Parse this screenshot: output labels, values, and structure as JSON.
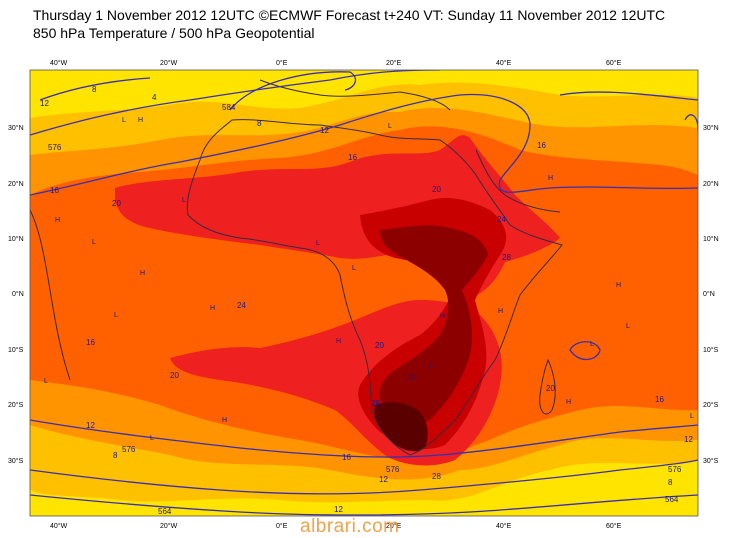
{
  "header": {
    "line1": "Thursday 1 November 2012 12UTC ©ECMWF Forecast t+240 VT: Sunday 11 November 2012 12UTC",
    "line2": "850 hPa Temperature / 500 hPa Geopotential"
  },
  "colors": {
    "yellow": "#ffe400",
    "gold": "#ffc000",
    "orange": "#ff9400",
    "dark_orange": "#ff6000",
    "red": "#ee2020",
    "crimson": "#c80000",
    "maroon": "#8c0000",
    "dark_maroon": "#5a0000",
    "contour": "#3a2fb0",
    "coast": "#3a2a40"
  },
  "axes": {
    "top_lon": [
      "40°W",
      "20°W",
      "0°E",
      "20°E",
      "40°E",
      "60°E"
    ],
    "bottom_lon": [
      "40°W",
      "20°W",
      "0°E",
      "20°E",
      "40°E",
      "60°E"
    ],
    "left_lat": [
      "30°N",
      "20°N",
      "10°N",
      "0°N",
      "10°S",
      "20°S",
      "30°S"
    ],
    "right_lat": [
      "30°N",
      "20°N",
      "10°N",
      "0°N",
      "10°S",
      "20°S",
      "30°S"
    ]
  },
  "temperature_labels": [
    "12",
    "8",
    "4",
    "12",
    "8",
    "16",
    "16",
    "20",
    "20",
    "16",
    "24",
    "28",
    "24",
    "16",
    "20",
    "24",
    "20",
    "28",
    "28",
    "20",
    "16",
    "12",
    "8",
    "12",
    "8",
    "12",
    "12",
    "16"
  ],
  "geopotential_labels": [
    "576",
    "584",
    "576",
    "576",
    "576",
    "564",
    "564"
  ],
  "pressure_markers": [
    "L",
    "H",
    "L",
    "H",
    "L",
    "H",
    "L",
    "H",
    "H",
    "L",
    "H",
    "L",
    "L",
    "H",
    "L",
    "H",
    "L",
    "H",
    "L",
    "H",
    "L",
    "L",
    "H",
    "L"
  ],
  "watermark": "albrari.com"
}
